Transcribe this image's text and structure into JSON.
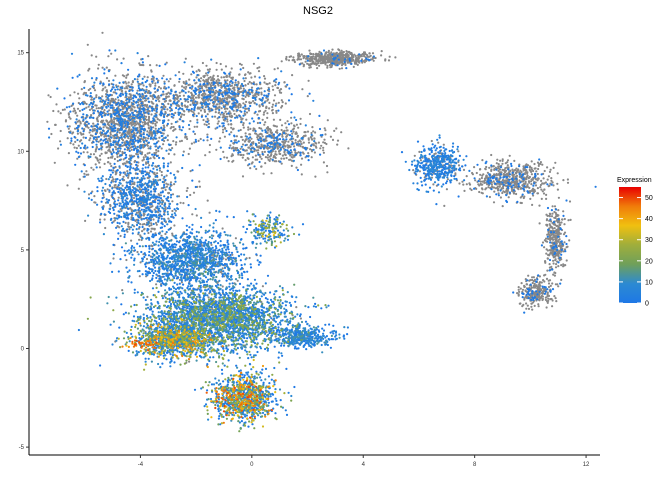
{
  "chart_data": {
    "type": "scatter",
    "title": "NSG2",
    "xlabel": "",
    "ylabel": "",
    "xlim": [
      -8,
      12.5
    ],
    "ylim": [
      -5.4,
      16.2
    ],
    "x_ticks": [
      -4,
      0,
      4,
      8,
      12
    ],
    "x_tick_labels": [
      "-4",
      "0",
      "4",
      "8",
      "12"
    ],
    "y_ticks": [
      -5,
      0,
      5,
      10,
      15
    ],
    "y_tick_labels": [
      "-5",
      "0",
      "5",
      "10",
      "15"
    ],
    "grid": false,
    "legend": {
      "title": "Expression",
      "placement": "right",
      "range": [
        0,
        55
      ],
      "breaks": [
        0,
        10,
        20,
        30,
        40,
        50
      ],
      "break_labels": [
        "0",
        "10",
        "20",
        "30",
        "40",
        "50"
      ],
      "colors": [
        "#1e78e6",
        "#2c8ad2",
        "#6fa05a",
        "#9fae3c",
        "#f0c010",
        "#f07c0a",
        "#e80000"
      ]
    },
    "na_color": "#888888",
    "regions": [
      {
        "name": "left-top-grey",
        "cx": -4.5,
        "cy": 11.5,
        "sx": 1.6,
        "sy": 2.0,
        "n": 1700,
        "expr": 0.05,
        "blue_frac": 0.35
      },
      {
        "name": "top-middle-grey",
        "cx": -1.2,
        "cy": 12.8,
        "sx": 1.8,
        "sy": 1.1,
        "n": 1000,
        "expr": 0.05,
        "blue_frac": 0.25
      },
      {
        "name": "top-right-arm",
        "cx": 3.0,
        "cy": 14.7,
        "sx": 1.1,
        "sy": 0.28,
        "n": 550,
        "expr": 0.02,
        "blue_frac": 0.05
      },
      {
        "name": "middle-arm",
        "cx": 0.8,
        "cy": 10.4,
        "sx": 1.6,
        "sy": 0.9,
        "n": 600,
        "expr": 0.05,
        "blue_frac": 0.25
      },
      {
        "name": "left-mid-blue",
        "cx": -4.0,
        "cy": 7.5,
        "sx": 1.2,
        "sy": 1.6,
        "n": 900,
        "expr": 0.08,
        "blue_frac": 0.55
      },
      {
        "name": "center-blue",
        "cx": -2.2,
        "cy": 4.5,
        "sx": 1.6,
        "sy": 1.3,
        "n": 1300,
        "expr": 0.12,
        "blue_frac": 0.85
      },
      {
        "name": "lower-blue",
        "cx": -1.2,
        "cy": 1.5,
        "sx": 2.1,
        "sy": 1.3,
        "n": 2600,
        "expr": 0.22,
        "blue_frac": 0.95
      },
      {
        "name": "lower-mix",
        "cx": -2.8,
        "cy": 0.4,
        "sx": 1.2,
        "sy": 0.7,
        "n": 900,
        "expr": 0.38,
        "blue_frac": 1.0
      },
      {
        "name": "bottom-lobe",
        "cx": -0.3,
        "cy": -2.5,
        "sx": 0.95,
        "sy": 1.0,
        "n": 1000,
        "expr": 0.42,
        "blue_frac": 1.0
      },
      {
        "name": "right-tail",
        "cx": 1.8,
        "cy": 0.6,
        "sx": 0.9,
        "sy": 0.45,
        "n": 400,
        "expr": 0.12,
        "blue_frac": 0.95
      },
      {
        "name": "side-cluster",
        "cx": 0.6,
        "cy": 6.0,
        "sx": 0.6,
        "sy": 0.6,
        "n": 180,
        "expr": 0.3,
        "blue_frac": 1.0
      },
      {
        "name": "right-island-blue",
        "cx": 6.7,
        "cy": 9.3,
        "sx": 0.7,
        "sy": 0.8,
        "n": 450,
        "expr": 0.08,
        "blue_frac": 0.8
      },
      {
        "name": "right-island-grey",
        "cx": 9.3,
        "cy": 8.5,
        "sx": 1.2,
        "sy": 0.8,
        "n": 600,
        "expr": 0.02,
        "blue_frac": 0.15
      },
      {
        "name": "right-island-hook",
        "cx": 10.9,
        "cy": 5.5,
        "sx": 0.35,
        "sy": 1.3,
        "n": 350,
        "expr": 0.02,
        "blue_frac": 0.15
      },
      {
        "name": "right-island-bottom",
        "cx": 10.2,
        "cy": 2.8,
        "sx": 0.5,
        "sy": 0.6,
        "n": 260,
        "expr": 0.02,
        "blue_frac": 0.15
      }
    ],
    "high_spots": [
      {
        "name": "red-spot",
        "cx": -3.9,
        "cy": 0.2,
        "sx": 0.3,
        "sy": 0.12,
        "n": 40,
        "value": 50
      }
    ]
  }
}
